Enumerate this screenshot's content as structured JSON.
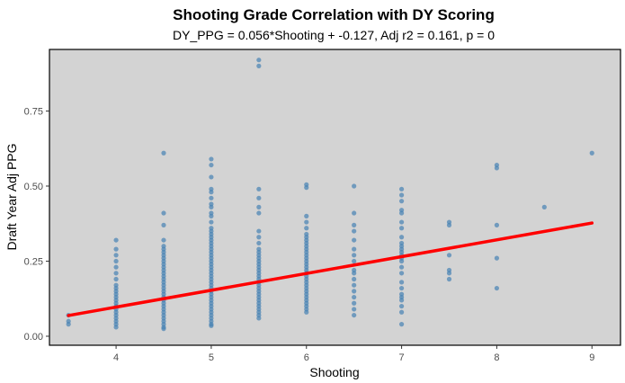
{
  "chart_data": {
    "type": "scatter",
    "title": "Shooting Grade Correlation with DY Scoring",
    "subtitle": "DY_PPG = 0.056*Shooting + -0.127, Adj r2 = 0.161, p = 0",
    "xlabel": "Shooting",
    "ylabel": "Draft Year Adj PPG",
    "xlim": [
      3.3,
      9.3
    ],
    "ylim": [
      -0.03,
      0.955
    ],
    "x_ticks": [
      4,
      5,
      6,
      7,
      8,
      9
    ],
    "x_tick_labels": [
      "4",
      "5",
      "6",
      "7",
      "8",
      "9"
    ],
    "y_ticks": [
      0.0,
      0.25,
      0.5,
      0.75
    ],
    "y_tick_labels": [
      "0.00",
      "0.25",
      "0.50",
      "0.75"
    ],
    "grid": false,
    "background": "#d3d3d3",
    "point_color": "#4682b4",
    "line_color": "#ff0000",
    "regression": {
      "slope": 0.056,
      "intercept": -0.127,
      "x_range": [
        3.5,
        9.0
      ]
    },
    "points": [
      {
        "x": 3.5,
        "y": [
          0.07,
          0.05,
          0.04
        ]
      },
      {
        "x": 4.0,
        "y": [
          0.32,
          0.29,
          0.27,
          0.25,
          0.23,
          0.21,
          0.19,
          0.17,
          0.16,
          0.15,
          0.14,
          0.13,
          0.12,
          0.11,
          0.1,
          0.09,
          0.08,
          0.07,
          0.06,
          0.05,
          0.04,
          0.03
        ]
      },
      {
        "x": 4.5,
        "y": [
          0.61,
          0.41,
          0.37,
          0.32,
          0.3,
          0.29,
          0.28,
          0.27,
          0.26,
          0.25,
          0.24,
          0.23,
          0.22,
          0.21,
          0.2,
          0.19,
          0.18,
          0.17,
          0.16,
          0.15,
          0.14,
          0.13,
          0.12,
          0.11,
          0.1,
          0.09,
          0.08,
          0.07,
          0.06,
          0.05,
          0.04,
          0.03,
          0.025
        ]
      },
      {
        "x": 5.0,
        "y": [
          0.59,
          0.57,
          0.53,
          0.49,
          0.48,
          0.46,
          0.44,
          0.43,
          0.41,
          0.4,
          0.38,
          0.36,
          0.35,
          0.34,
          0.33,
          0.32,
          0.31,
          0.3,
          0.29,
          0.28,
          0.27,
          0.26,
          0.25,
          0.24,
          0.23,
          0.22,
          0.21,
          0.2,
          0.19,
          0.18,
          0.17,
          0.16,
          0.15,
          0.14,
          0.13,
          0.12,
          0.11,
          0.1,
          0.09,
          0.08,
          0.07,
          0.06,
          0.05,
          0.04,
          0.035
        ]
      },
      {
        "x": 5.5,
        "y": [
          0.92,
          0.9,
          0.49,
          0.46,
          0.43,
          0.41,
          0.35,
          0.33,
          0.31,
          0.29,
          0.28,
          0.27,
          0.26,
          0.25,
          0.24,
          0.23,
          0.22,
          0.21,
          0.2,
          0.19,
          0.18,
          0.17,
          0.16,
          0.15,
          0.14,
          0.13,
          0.12,
          0.11,
          0.1,
          0.09,
          0.08,
          0.07,
          0.06
        ]
      },
      {
        "x": 6.0,
        "y": [
          0.505,
          0.495,
          0.4,
          0.38,
          0.36,
          0.34,
          0.33,
          0.32,
          0.31,
          0.3,
          0.29,
          0.28,
          0.27,
          0.26,
          0.25,
          0.24,
          0.23,
          0.22,
          0.21,
          0.2,
          0.19,
          0.18,
          0.17,
          0.16,
          0.15,
          0.14,
          0.13,
          0.12,
          0.11,
          0.1,
          0.09,
          0.08
        ]
      },
      {
        "x": 6.5,
        "y": [
          0.5,
          0.41,
          0.37,
          0.35,
          0.32,
          0.29,
          0.27,
          0.25,
          0.22,
          0.21,
          0.19,
          0.17,
          0.15,
          0.13,
          0.11,
          0.09,
          0.07
        ]
      },
      {
        "x": 7.0,
        "y": [
          0.49,
          0.47,
          0.45,
          0.42,
          0.41,
          0.38,
          0.36,
          0.33,
          0.31,
          0.3,
          0.29,
          0.28,
          0.27,
          0.26,
          0.25,
          0.23,
          0.21,
          0.18,
          0.16,
          0.14,
          0.13,
          0.12,
          0.1,
          0.08,
          0.04
        ]
      },
      {
        "x": 7.5,
        "y": [
          0.38,
          0.37,
          0.27,
          0.22,
          0.21,
          0.19
        ]
      },
      {
        "x": 8.0,
        "y": [
          0.57,
          0.56,
          0.37,
          0.26,
          0.16
        ]
      },
      {
        "x": 8.5,
        "y": [
          0.43
        ]
      },
      {
        "x": 9.0,
        "y": [
          0.61
        ]
      }
    ]
  }
}
